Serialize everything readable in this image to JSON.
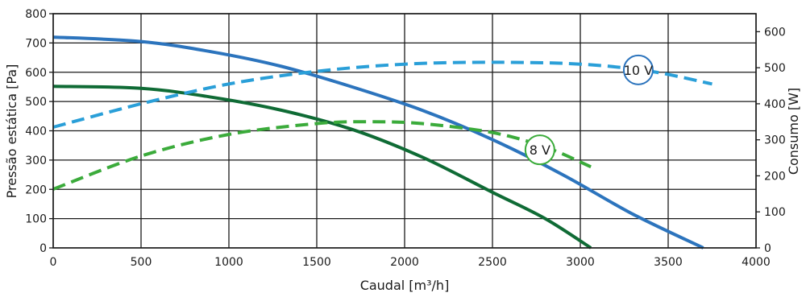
{
  "chart_data": {
    "type": "line",
    "xlabel": "Caudal [m³/h]",
    "ylabel": "Pressão estática [Pa]",
    "y2label": "Consumo [W]",
    "xlim": [
      0,
      4000
    ],
    "ylim": [
      0,
      800
    ],
    "y2lim": [
      0,
      650
    ],
    "x_ticks": [
      0,
      500,
      1000,
      1500,
      2000,
      2500,
      3000,
      3500,
      4000
    ],
    "y_ticks": [
      0,
      100,
      200,
      300,
      400,
      500,
      600,
      700,
      800
    ],
    "y2_ticks": [
      0,
      100,
      200,
      300,
      400,
      500,
      600
    ],
    "grid": true,
    "series": [
      {
        "label": "10 V",
        "kind": "pressure",
        "axis": "left",
        "style": "solid",
        "color": "#2c74bd",
        "x": [
          0,
          500,
          900,
          1300,
          1700,
          2100,
          2500,
          2900,
          3300,
          3700
        ],
        "y": [
          720,
          705,
          670,
          620,
          550,
          470,
          370,
          250,
          115,
          0
        ]
      },
      {
        "label": "8 V",
        "kind": "pressure",
        "axis": "left",
        "style": "solid",
        "color": "#0f6b35",
        "x": [
          0,
          500,
          900,
          1300,
          1700,
          2100,
          2500,
          2800,
          3060
        ],
        "y": [
          552,
          545,
          515,
          470,
          405,
          310,
          190,
          100,
          0
        ]
      },
      {
        "label": "10 V",
        "kind": "consumption",
        "axis": "right",
        "style": "dashed",
        "color": "#2a9fd8",
        "x": [
          0,
          500,
          1000,
          1500,
          2000,
          2500,
          3000,
          3400,
          3750
        ],
        "y": [
          335,
          400,
          455,
          490,
          510,
          515,
          510,
          490,
          455
        ]
      },
      {
        "label": "8 V",
        "kind": "consumption",
        "axis": "right",
        "style": "dashed",
        "color": "#3bab3b",
        "x": [
          0,
          500,
          1000,
          1500,
          1800,
          2100,
          2500,
          2800,
          3060
        ],
        "y": [
          163,
          255,
          315,
          345,
          350,
          345,
          320,
          280,
          225
        ]
      }
    ],
    "annotations": [
      {
        "text": "10 V",
        "x": 3330,
        "y": 608,
        "axis": "left",
        "color": "#2c74bd"
      },
      {
        "text": "8 V",
        "x": 2770,
        "y": 335,
        "axis": "left",
        "color": "#3bab3b"
      }
    ]
  }
}
